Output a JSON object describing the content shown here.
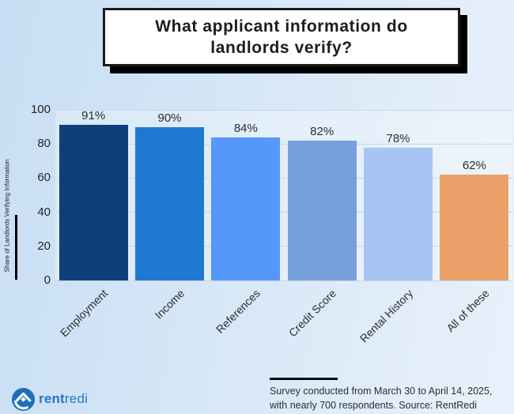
{
  "title": {
    "line1": "What applicant information do",
    "line2": "landlords verify?"
  },
  "chart_data": {
    "type": "bar",
    "categories": [
      "Employment",
      "Income",
      "References",
      "Credit Score",
      "Rental History",
      "All of these"
    ],
    "values": [
      91,
      90,
      84,
      82,
      78,
      62
    ],
    "value_labels": [
      "91%",
      "90%",
      "84%",
      "82%",
      "78%",
      "62%"
    ],
    "bar_colors": [
      "#0d4079",
      "#1e78d4",
      "#5597fa",
      "#779fda",
      "#a7c4f4",
      "#eaa068"
    ],
    "title": "What applicant information do landlords verify?",
    "xlabel": "",
    "ylabel": "Share of Landlords Verifying Information",
    "yticks": [
      0,
      20,
      40,
      60,
      80,
      100
    ],
    "ylim": [
      0,
      100
    ],
    "grid": true,
    "legend": false
  },
  "footer": {
    "logo_bold": "rent",
    "logo_light": "redi",
    "source_line1": "Survey conducted from March 30 to April 14, 2025,",
    "source_line2": "with nearly 700 respondents. Source: RentRedi"
  },
  "colors": {
    "background_start": "#c8def4",
    "background_end": "#e9f1fb",
    "gridline": "#c9d5e4",
    "title_border": "#1a1a1a",
    "title_shadow": "#000000",
    "logo_blue": "#2176c0",
    "text_dark": "#2e2e2e"
  }
}
